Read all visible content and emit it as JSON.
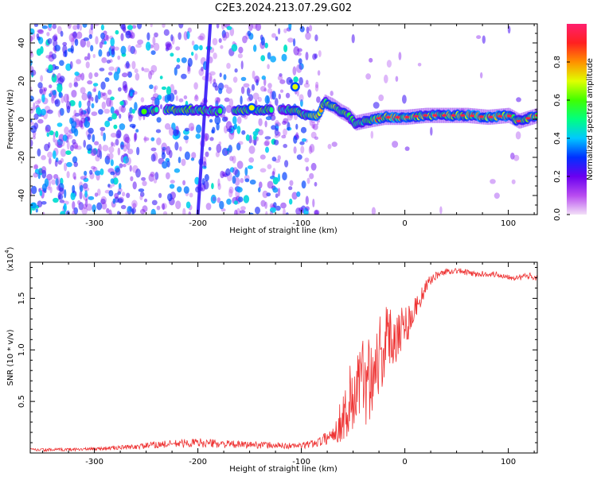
{
  "chart_data": [
    {
      "type": "heatmap",
      "title": "C2E3.2024.213.07.29.G02",
      "xlabel": "Height of straight line (km)",
      "ylabel": "Frequency (Hz)",
      "xlim": [
        -362,
        128
      ],
      "ylim": [
        -50,
        50
      ],
      "x_ticks": [
        -300,
        -200,
        -100,
        0,
        100
      ],
      "x_tick_labels": [
        "-300",
        "-200",
        "-100",
        "0",
        "100"
      ],
      "y_ticks": [
        -40,
        -20,
        0,
        20,
        40
      ],
      "y_tick_labels": [
        "-40",
        "-20",
        "0",
        "20",
        "40"
      ],
      "grid": false,
      "colorbar": {
        "label": "Normalized spectral amplitude",
        "range": [
          0,
          1
        ],
        "ticks": [
          0.0,
          0.2,
          0.4,
          0.6,
          0.8
        ],
        "tick_labels": [
          "0.0",
          "0.2",
          "0.4",
          "0.6",
          "0.8"
        ],
        "colors": [
          "#f2e0f7",
          "#b84cf0",
          "#6a00f0",
          "#0030ff",
          "#00c8ff",
          "#00ff80",
          "#40ff00",
          "#e0ff00",
          "#ff9000",
          "#ff2020",
          "#ff1f6e"
        ]
      },
      "ridge": {
        "x": [
          -255,
          -240,
          -220,
          -200,
          -180,
          -160,
          -140,
          -120,
          -105,
          -95,
          -85,
          -78,
          -70,
          -62,
          -55,
          -48,
          -40,
          -30,
          -20,
          -10,
          0,
          20,
          40,
          60,
          80,
          100,
          110,
          128
        ],
        "y": [
          4,
          5,
          5,
          5,
          4,
          5,
          5,
          5,
          5,
          2,
          1,
          9,
          7,
          4,
          2,
          -2,
          -1,
          0,
          1,
          1,
          1,
          2,
          2,
          2,
          1,
          2,
          -1,
          2
        ],
        "amplitude": [
          0.55,
          0.6,
          0.65,
          0.6,
          0.5,
          0.6,
          0.6,
          0.55,
          0.6,
          0.6,
          0.75,
          0.7,
          0.7,
          0.65,
          0.6,
          0.55,
          0.6,
          0.75,
          0.8,
          0.8,
          0.75,
          0.65,
          0.7,
          0.75,
          0.8,
          0.75,
          0.6,
          0.7
        ]
      },
      "sloped_line": {
        "x": [
          -200,
          -188
        ],
        "y": [
          -50,
          50
        ],
        "amplitude": 0.25
      },
      "spots": [
        {
          "x": -106,
          "y": 17,
          "amplitude": 0.7
        },
        {
          "x": -252,
          "y": 4,
          "amplitude": 0.6
        },
        {
          "x": -148,
          "y": 6,
          "amplitude": 0.7
        }
      ]
    },
    {
      "type": "line",
      "xlabel": "Height of straight line (km)",
      "ylabel": "SNR (10 * v/v)",
      "y_multiplier": "(x10",
      "y_multiplier_exp": "4",
      "y_multiplier_close": ")",
      "xlim": [
        -362,
        128
      ],
      "ylim": [
        0,
        18500
      ],
      "x_ticks": [
        -300,
        -200,
        -100,
        0,
        100
      ],
      "x_tick_labels": [
        "-300",
        "-200",
        "-100",
        "0",
        "100"
      ],
      "y_ticks": [
        5000,
        10000,
        15000
      ],
      "y_tick_labels": [
        "0.5",
        "1.0",
        "1.5"
      ],
      "grid": false,
      "series": [
        {
          "color": "#ee3333",
          "x": [
            -362,
            -340,
            -320,
            -300,
            -280,
            -260,
            -240,
            -220,
            -200,
            -180,
            -160,
            -140,
            -120,
            -100,
            -90,
            -80,
            -70,
            -65,
            -60,
            -55,
            -50,
            -45,
            -40,
            -35,
            -30,
            -25,
            -20,
            -15,
            -10,
            -5,
            0,
            5,
            10,
            15,
            20,
            25,
            30,
            35,
            40,
            50,
            60,
            70,
            80,
            90,
            100,
            110,
            120,
            128
          ],
          "y": [
            300,
            300,
            350,
            400,
            500,
            600,
            800,
            900,
            1000,
            900,
            800,
            800,
            700,
            700,
            900,
            1200,
            1800,
            2500,
            3500,
            4500,
            5500,
            6500,
            7000,
            7500,
            8500,
            9500,
            10500,
            11000,
            11500,
            12000,
            12500,
            13000,
            14000,
            15000,
            16000,
            16800,
            17200,
            17400,
            17600,
            17700,
            17500,
            17300,
            17400,
            17300,
            17100,
            17000,
            17200,
            17000
          ],
          "spread": [
            150,
            150,
            150,
            150,
            200,
            250,
            350,
            400,
            450,
            400,
            350,
            350,
            300,
            300,
            400,
            500,
            900,
            1500,
            2500,
            3500,
            4500,
            4500,
            4500,
            4500,
            4500,
            4500,
            4000,
            3500,
            3000,
            2500,
            2200,
            1800,
            1200,
            900,
            700,
            500,
            400,
            300,
            300,
            300,
            300,
            300,
            300,
            300,
            300,
            300,
            300,
            300
          ]
        }
      ]
    }
  ]
}
